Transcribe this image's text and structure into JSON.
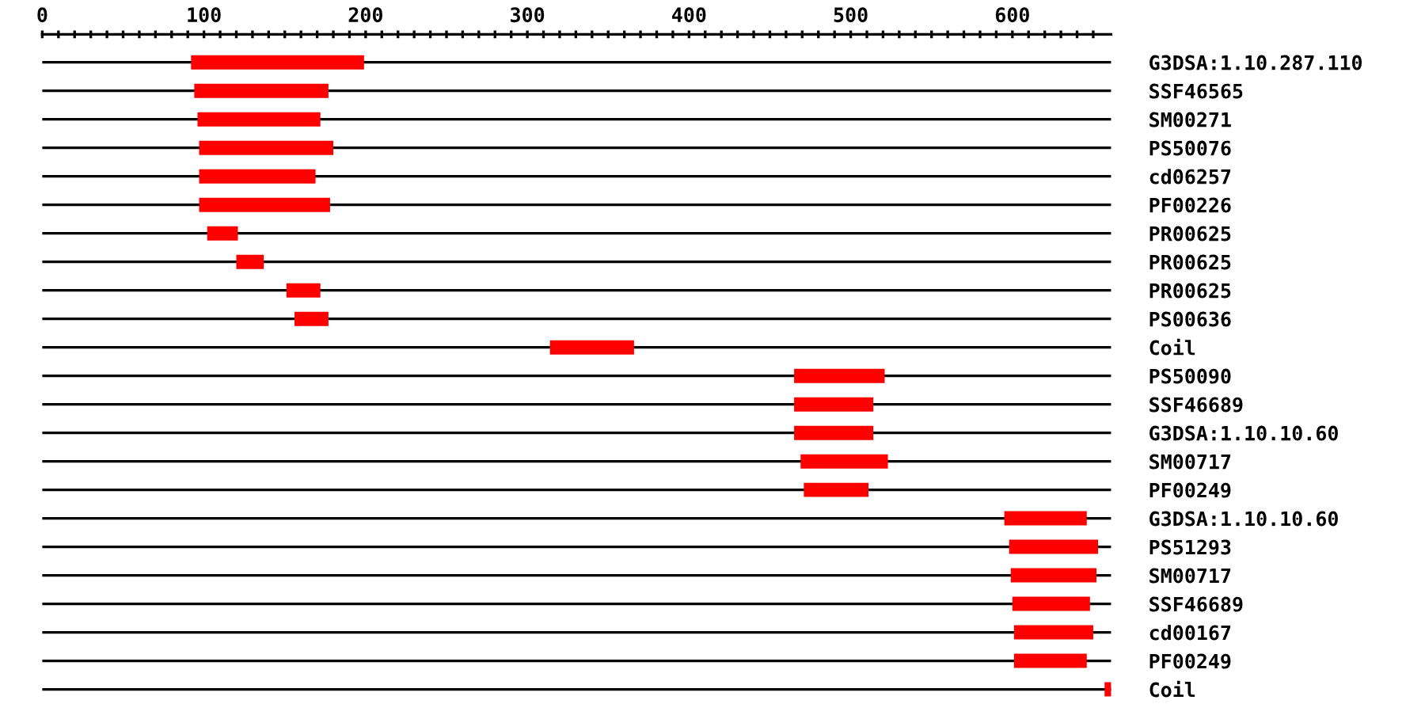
{
  "chart_data": {
    "type": "bar",
    "orientation": "horizontal",
    "categories": [
      "G3DSA:1.10.287.110",
      "SSF46565",
      "SM00271",
      "PS50076",
      "cd06257",
      "PF00226",
      "PR00625",
      "PR00625",
      "PR00625",
      "PS00636",
      "Coil",
      "PS50090",
      "SSF46689",
      "G3DSA:1.10.10.60",
      "SM00717",
      "PF00249",
      "G3DSA:1.10.10.60",
      "PS51293",
      "SM00717",
      "SSF46689",
      "cd00167",
      "PF00249",
      "Coil"
    ],
    "base": [
      92,
      94,
      96,
      97,
      97,
      97,
      102,
      120,
      151,
      156,
      314,
      465,
      465,
      465,
      469,
      471,
      595,
      598,
      599,
      600,
      601,
      601,
      657
    ],
    "values": [
      107,
      83,
      76,
      83,
      72,
      81,
      19,
      17,
      21,
      21,
      52,
      56,
      49,
      49,
      54,
      40,
      51,
      55,
      53,
      48,
      49,
      45,
      5
    ],
    "color": "#ff0000",
    "xlim": [
      0,
      661
    ],
    "xticks": [
      0,
      {
        "value": 10,
        "label": null
      },
      {
        "value": 20,
        "label": null
      },
      {
        "value": 30,
        "label": null
      },
      {
        "value": 40,
        "label": null
      },
      {
        "value": 50,
        "label": null
      },
      {
        "value": 60,
        "label": null
      },
      {
        "value": 70,
        "label": null
      },
      {
        "value": 80,
        "label": null
      },
      {
        "value": 90,
        "label": null
      },
      100,
      {
        "value": 110,
        "label": null
      },
      {
        "value": 120,
        "label": null
      },
      {
        "value": 130,
        "label": null
      },
      {
        "value": 140,
        "label": null
      },
      {
        "value": 150,
        "label": null
      },
      {
        "value": 160,
        "label": null
      },
      {
        "value": 170,
        "label": null
      },
      {
        "value": 180,
        "label": null
      },
      {
        "value": 190,
        "label": null
      },
      200,
      {
        "value": 210,
        "label": null
      },
      {
        "value": 220,
        "label": null
      },
      {
        "value": 230,
        "label": null
      },
      {
        "value": 240,
        "label": null
      },
      {
        "value": 250,
        "label": null
      },
      {
        "value": 260,
        "label": null
      },
      {
        "value": 270,
        "label": null
      },
      {
        "value": 280,
        "label": null
      },
      {
        "value": 290,
        "label": null
      },
      300,
      {
        "value": 310,
        "label": null
      },
      {
        "value": 320,
        "label": null
      },
      {
        "value": 330,
        "label": null
      },
      {
        "value": 340,
        "label": null
      },
      {
        "value": 350,
        "label": null
      },
      {
        "value": 360,
        "label": null
      },
      {
        "value": 370,
        "label": null
      },
      {
        "value": 380,
        "label": null
      },
      {
        "value": 390,
        "label": null
      },
      400,
      {
        "value": 410,
        "label": null
      },
      {
        "value": 420,
        "label": null
      },
      {
        "value": 430,
        "label": null
      },
      {
        "value": 440,
        "label": null
      },
      {
        "value": 450,
        "label": null
      },
      {
        "value": 460,
        "label": null
      },
      {
        "value": 470,
        "label": null
      },
      {
        "value": 480,
        "label": null
      },
      {
        "value": 490,
        "label": null
      },
      500,
      {
        "value": 510,
        "label": null
      },
      {
        "value": 520,
        "label": null
      },
      {
        "value": 530,
        "label": null
      },
      {
        "value": 540,
        "label": null
      },
      {
        "value": 550,
        "label": null
      },
      {
        "value": 560,
        "label": null
      },
      {
        "value": 570,
        "label": null
      },
      {
        "value": 580,
        "label": null
      },
      {
        "value": 590,
        "label": null
      },
      600,
      {
        "value": 610,
        "label": null
      },
      {
        "value": 620,
        "label": null
      },
      {
        "value": 630,
        "label": null
      },
      {
        "value": 640,
        "label": null
      },
      {
        "value": 650,
        "label": null
      }
    ],
    "grid": "y"
  }
}
